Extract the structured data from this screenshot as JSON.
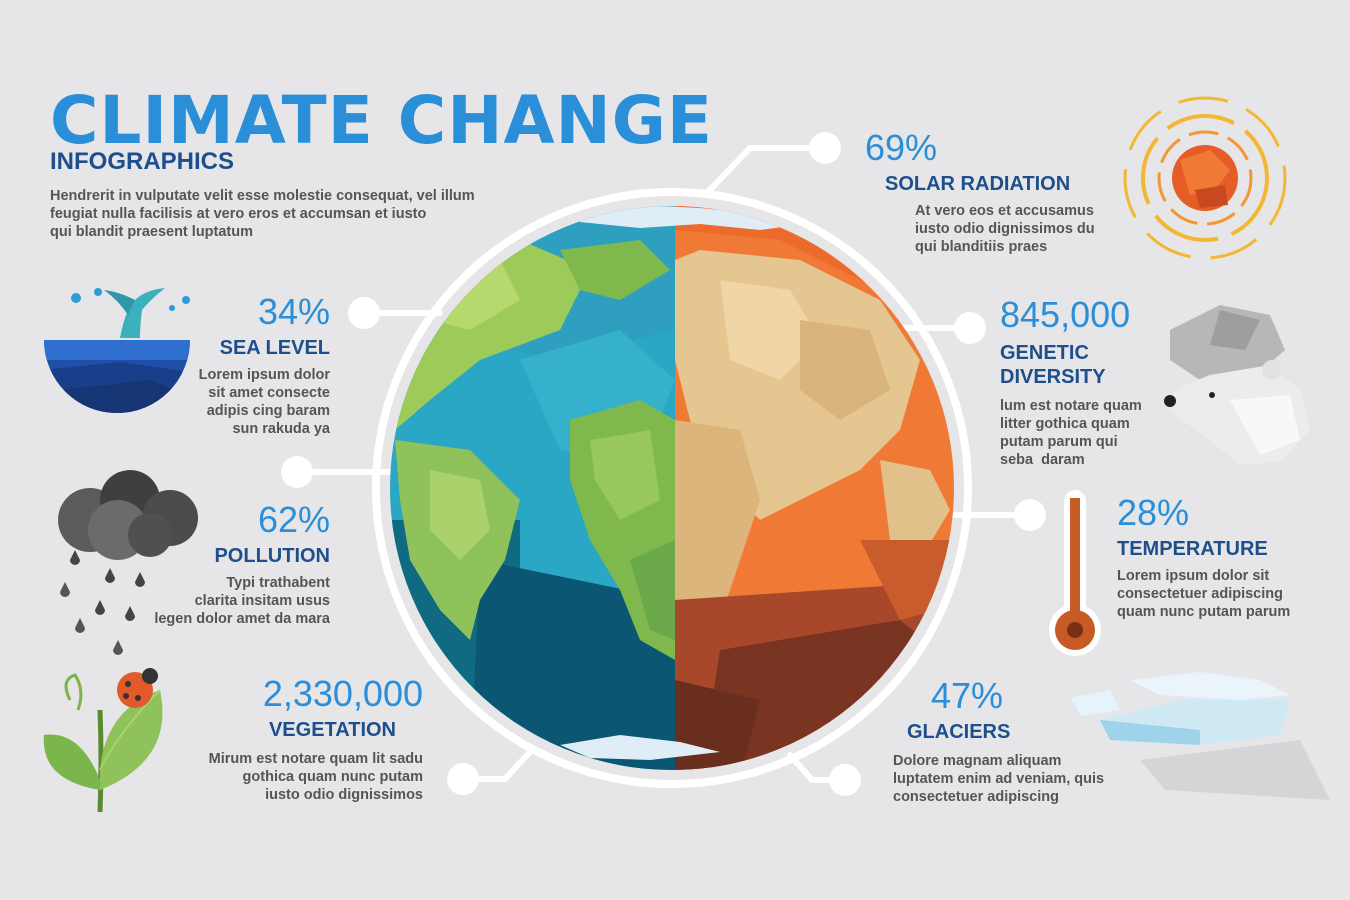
{
  "header": {
    "title": "CLIMATE CHANGE",
    "subtitle": "INFOGRAPHICS",
    "intro_lines": [
      "Hendrerit in vulputate velit esse molestie consequat, vel illum",
      "feugiat nulla facilisis at vero eros et accumsan et iusto",
      "qui blandit praesent luptatum"
    ]
  },
  "stats": {
    "sea_level": {
      "value": "34%",
      "label": "SEA LEVEL",
      "desc_lines": [
        "Lorem ipsum dolor",
        "sit amet consecte",
        "adipis cing baram",
        "sun rakuda ya"
      ]
    },
    "pollution": {
      "value": "62%",
      "label": "POLLUTION",
      "desc_lines": [
        "Typi trathabent",
        "clarita insitam usus",
        "legen dolor amet da mara"
      ]
    },
    "vegetation": {
      "value": "2,330,000",
      "label": "VEGETATION",
      "desc_lines": [
        "Mirum est notare quam lit sadu",
        "gothica quam nunc putam",
        "iusto odio dignissimos"
      ]
    },
    "solar_radiation": {
      "value": "69%",
      "label": "SOLAR RADIATION",
      "desc_lines": [
        "At vero eos et accusamus",
        "iusto odio dignissimos du",
        "qui blanditiis praes"
      ]
    },
    "genetic_diversity": {
      "value": "845,000",
      "label_lines": [
        "GENETIC",
        "DIVERSITY"
      ],
      "desc_lines": [
        "lum est notare quam",
        "litter gothica quam",
        "putam parum qui",
        "seba  daram"
      ]
    },
    "temperature": {
      "value": "28%",
      "label": "TEMPERATURE",
      "desc_lines": [
        "Lorem ipsum dolor sit",
        "consectetuer adipiscing",
        "quam nunc putam parum"
      ]
    },
    "glaciers": {
      "value": "47%",
      "label": "GLACIERS",
      "desc_lines": [
        "Dolore magnam aliquam",
        "luptatem enim ad veniam, quis",
        "consectetuer adipiscing"
      ]
    }
  },
  "colors": {
    "title_blue": "#2a8fd8",
    "label_navy": "#1e4f8c",
    "background": "#e6e6e8",
    "text_gray": "#555555"
  },
  "icons": [
    "whale-tail-icon",
    "cloud-rain-icon",
    "plant-ladybug-icon",
    "sun-icon",
    "polar-bear-icon",
    "thermometer-icon",
    "glacier-icon",
    "earth-globe"
  ]
}
